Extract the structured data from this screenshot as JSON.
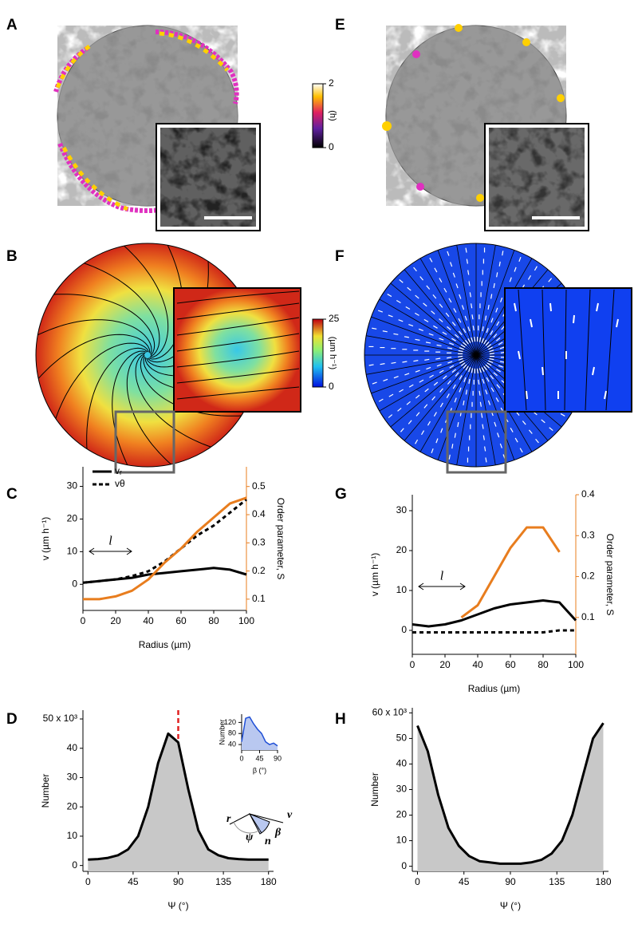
{
  "panel_labels": [
    "A",
    "B",
    "C",
    "D",
    "E",
    "F",
    "G",
    "H"
  ],
  "colorbars": [
    {
      "label": "(h)",
      "lim": [
        0,
        2
      ],
      "ticks": [
        0,
        2
      ]
    },
    {
      "label": "(µm h⁻¹)",
      "lim": [
        0,
        25
      ],
      "ticks": [
        0,
        25
      ]
    }
  ],
  "diagram_labels": [
    "r",
    "v",
    "β",
    "ψ",
    "n"
  ],
  "chart_data": [
    {
      "type": "line",
      "x": [
        0,
        10,
        20,
        30,
        40,
        50,
        60,
        70,
        80,
        90,
        100
      ],
      "xlim": [
        0,
        100
      ],
      "xticks": [
        0,
        20,
        40,
        60,
        80,
        100
      ],
      "xlabel": "Radius (µm)",
      "ylim": [
        -8,
        36
      ],
      "yticks": [
        0,
        10,
        20,
        30
      ],
      "ylabel": "v (µm h⁻¹)",
      "y2lim": [
        0.06,
        0.57
      ],
      "y2ticks": [
        0.1,
        0.2,
        0.3,
        0.4,
        0.5
      ],
      "y2label": "Order parameter, S",
      "y2color": "#e87d1e",
      "legend": true,
      "annotation": "l",
      "series": [
        {
          "name": "vᵣ",
          "color": "#000000",
          "dash": "solid",
          "values": [
            0.5,
            1,
            1.5,
            2,
            3,
            3.5,
            4,
            4.5,
            5,
            4.5,
            3
          ]
        },
        {
          "name": "vθ",
          "color": "#000000",
          "dash": "dashed",
          "values": [
            0.5,
            1,
            1.5,
            2.5,
            4,
            7,
            11,
            15,
            18,
            22,
            26
          ]
        },
        {
          "name": "Order parameter, S",
          "color": "#e87d1e",
          "dash": "solid",
          "axis": "y2",
          "values": [
            0.1,
            0.1,
            0.11,
            0.13,
            0.17,
            0.23,
            0.28,
            0.34,
            0.39,
            0.44,
            0.46
          ]
        }
      ]
    },
    {
      "type": "line",
      "x": [
        0,
        10,
        20,
        30,
        40,
        50,
        60,
        70,
        80,
        90,
        100
      ],
      "xlim": [
        0,
        100
      ],
      "xticks": [
        0,
        20,
        40,
        60,
        80,
        100
      ],
      "xlabel": "Radius (µm)",
      "ylim": [
        -6,
        34
      ],
      "yticks": [
        0,
        10,
        20,
        30
      ],
      "ylabel": "v (µm h⁻¹)",
      "y2lim": [
        0.01,
        0.4
      ],
      "y2ticks": [
        0.1,
        0.2,
        0.3,
        0.4
      ],
      "y2label": "Order parameter, S",
      "y2color": "#e87d1e",
      "legend": false,
      "annotation": "l",
      "series": [
        {
          "name": "vᵣ",
          "color": "#000000",
          "dash": "solid",
          "values": [
            1.5,
            1,
            1.5,
            2.5,
            4,
            5.5,
            6.5,
            7,
            7.5,
            7,
            2.5
          ]
        },
        {
          "name": "vθ",
          "color": "#000000",
          "dash": "dashed",
          "values": [
            -0.5,
            -0.5,
            -0.5,
            -0.5,
            -0.5,
            -0.5,
            -0.5,
            -0.5,
            -0.5,
            0,
            0
          ]
        },
        {
          "name": "Order parameter, S",
          "color": "#e87d1e",
          "dash": "solid",
          "axis": "y2",
          "values": [
            null,
            null,
            null,
            0.1,
            0.13,
            0.2,
            0.27,
            0.32,
            0.32,
            0.26,
            null
          ]
        }
      ]
    },
    {
      "type": "area",
      "x": [
        0,
        10,
        20,
        30,
        40,
        50,
        60,
        70,
        80,
        90,
        100,
        110,
        120,
        130,
        140,
        150,
        160,
        170,
        180
      ],
      "xlim": [
        -5,
        185
      ],
      "xticks": [
        0,
        45,
        90,
        135,
        180
      ],
      "xlabel": "Ψ (°)",
      "ylim": [
        -2000,
        53000
      ],
      "yticks": [
        0,
        {
          "value": 10000,
          "label": "10"
        },
        {
          "value": 20000,
          "label": "20"
        },
        {
          "value": 30000,
          "label": "30"
        },
        {
          "value": 40000,
          "label": "40"
        },
        {
          "value": 50000,
          "label": "50 x 10³"
        }
      ],
      "ylabel": "Number",
      "reference_line": 90,
      "reference_color": "#e02020",
      "series": [
        {
          "name": "Number",
          "color": "#000000",
          "fill": "#c8c8c8",
          "values": [
            2000,
            2200,
            2600,
            3500,
            5500,
            10000,
            20000,
            35000,
            45000,
            42000,
            26000,
            12000,
            5500,
            3500,
            2500,
            2200,
            2000,
            2000,
            2000
          ]
        }
      ]
    },
    {
      "type": "area",
      "x": [
        0,
        10,
        20,
        30,
        40,
        50,
        60,
        70,
        80,
        90
      ],
      "xlim": [
        0,
        90
      ],
      "xticks": [
        0,
        45,
        90
      ],
      "xlabel": "β (°)",
      "ylim": [
        20,
        150
      ],
      "yticks": [
        40,
        80,
        120
      ],
      "ylabel": "Number",
      "series": [
        {
          "name": "Number",
          "color": "#1f4fd6",
          "fill": "#b9c8f0",
          "values": [
            50,
            135,
            140,
            115,
            95,
            80,
            50,
            40,
            45,
            35
          ]
        }
      ]
    },
    {
      "type": "area",
      "x": [
        0,
        10,
        20,
        30,
        40,
        50,
        60,
        70,
        80,
        90,
        100,
        110,
        120,
        130,
        140,
        150,
        160,
        170,
        180
      ],
      "xlim": [
        -5,
        185
      ],
      "xticks": [
        0,
        45,
        90,
        135,
        180
      ],
      "xlabel": "Ψ (°)",
      "ylim": [
        -2000,
        62000
      ],
      "yticks": [
        0,
        {
          "value": 10000,
          "label": "10"
        },
        {
          "value": 20000,
          "label": "20"
        },
        {
          "value": 30000,
          "label": "30"
        },
        {
          "value": 40000,
          "label": "40"
        },
        {
          "value": 50000,
          "label": "50"
        },
        {
          "value": 60000,
          "label": "60 x 10³"
        }
      ],
      "ylabel": "Number",
      "series": [
        {
          "name": "Number",
          "color": "#000000",
          "fill": "#c8c8c8",
          "values": [
            55000,
            45000,
            28000,
            15000,
            8000,
            4000,
            2000,
            1500,
            1000,
            1000,
            1000,
            1500,
            2500,
            5000,
            10000,
            20000,
            35000,
            50000,
            56000
          ]
        }
      ]
    }
  ]
}
